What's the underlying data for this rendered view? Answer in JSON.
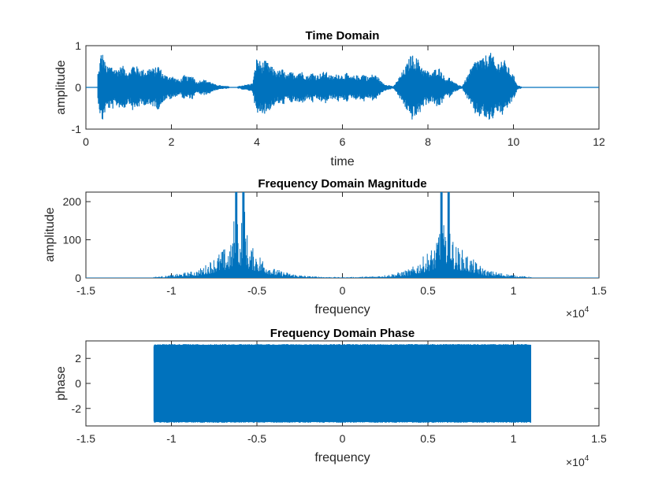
{
  "chart_data": [
    {
      "type": "line",
      "title": "Time Domain",
      "xlabel": "time",
      "ylabel": "amplitude",
      "xlim": [
        0,
        12
      ],
      "ylim": [
        -1,
        1
      ],
      "xticks": [
        0,
        2,
        4,
        6,
        8,
        10,
        12
      ],
      "xtick_labels": [
        "0",
        "2",
        "4",
        "6",
        "8",
        "10",
        "12"
      ],
      "yticks": [
        -1,
        0,
        1
      ],
      "ytick_labels": [
        "-1",
        "0",
        "1"
      ],
      "color": "#0072BD",
      "series": [
        {
          "x": [
            0,
            0.3,
            0.35,
            0.4,
            0.45,
            0.5,
            0.6,
            0.7,
            0.8,
            0.9,
            1.0,
            1.1,
            1.2,
            1.3,
            1.4,
            1.5,
            1.6,
            1.7,
            1.8,
            1.9,
            2.0,
            2.1,
            2.2,
            2.3,
            2.4,
            2.5,
            2.6,
            2.7,
            2.8,
            2.9,
            3.0,
            3.2,
            3.5,
            3.9,
            4.0,
            4.1,
            4.2,
            4.3,
            4.4,
            4.5,
            4.6,
            4.7,
            4.8,
            4.9,
            5.0,
            5.1,
            5.2,
            5.3,
            5.4,
            5.5,
            5.6,
            5.7,
            5.8,
            5.9,
            6.0,
            6.1,
            6.2,
            6.3,
            6.4,
            6.5,
            6.6,
            6.7,
            6.8,
            6.9,
            7.0,
            7.2,
            7.5,
            7.6,
            7.7,
            7.8,
            7.9,
            8.0,
            8.1,
            8.2,
            8.3,
            8.4,
            8.5,
            8.6,
            8.8,
            9.1,
            9.2,
            9.3,
            9.4,
            9.5,
            9.6,
            9.7,
            9.8,
            9.9,
            10.0,
            10.1,
            10.3,
            12.0
          ],
          "y_envelope": [
            0.02,
            0.4,
            0.85,
            0.82,
            0.6,
            0.5,
            0.55,
            0.45,
            0.5,
            0.52,
            0.35,
            0.58,
            0.5,
            0.45,
            0.42,
            0.5,
            0.45,
            0.55,
            0.35,
            0.28,
            0.3,
            0.22,
            0.18,
            0.3,
            0.25,
            0.3,
            0.12,
            0.2,
            0.18,
            0.15,
            0.08,
            0.04,
            0.02,
            0.1,
            0.75,
            0.6,
            0.65,
            0.55,
            0.45,
            0.4,
            0.45,
            0.3,
            0.38,
            0.35,
            0.42,
            0.35,
            0.28,
            0.38,
            0.3,
            0.35,
            0.4,
            0.3,
            0.28,
            0.35,
            0.3,
            0.35,
            0.25,
            0.3,
            0.28,
            0.35,
            0.25,
            0.32,
            0.3,
            0.15,
            0.08,
            0.03,
            0.55,
            0.8,
            0.75,
            0.65,
            0.45,
            0.4,
            0.35,
            0.5,
            0.45,
            0.22,
            0.25,
            0.12,
            0.03,
            0.65,
            0.72,
            0.7,
            0.85,
            0.82,
            0.55,
            0.7,
            0.65,
            0.45,
            0.3,
            0.05,
            0.0,
            0.0
          ]
        }
      ]
    },
    {
      "type": "line",
      "title": "Frequency Domain Magnitude",
      "xlabel": "frequency",
      "ylabel": "amplitude",
      "xlim": [
        -15000,
        15000
      ],
      "ylim": [
        0,
        225
      ],
      "xticks": [
        -15000,
        -10000,
        -5000,
        0,
        5000,
        10000,
        15000
      ],
      "xtick_labels": [
        "-1.5",
        "-1",
        "-0.5",
        "0",
        "0.5",
        "1",
        "1.5"
      ],
      "yticks": [
        0,
        100,
        200
      ],
      "ytick_labels": [
        "0",
        "100",
        "200"
      ],
      "x_exponent_base": "×10",
      "x_exponent": "4",
      "color": "#0072BD",
      "series": [
        {
          "x": [
            -11025,
            -10500,
            -10000,
            -9500,
            -9000,
            -8500,
            -8000,
            -7500,
            -7000,
            -6500,
            -6200,
            -6000,
            -5800,
            -5500,
            -5000,
            -4500,
            -4000,
            -3500,
            -3000,
            -2500,
            -2000,
            -1000,
            0,
            1000,
            2000,
            2500,
            3000,
            3500,
            4000,
            4500,
            5000,
            5500,
            5800,
            6000,
            6200,
            6500,
            7000,
            7500,
            8000,
            8500,
            9000,
            9500,
            10000,
            10500,
            11025
          ],
          "y_envelope": [
            3,
            5,
            8,
            12,
            16,
            20,
            35,
            55,
            75,
            90,
            225,
            100,
            225,
            90,
            70,
            45,
            25,
            18,
            12,
            8,
            5,
            3,
            2,
            3,
            5,
            8,
            12,
            18,
            25,
            45,
            70,
            90,
            225,
            100,
            225,
            90,
            75,
            55,
            35,
            20,
            16,
            12,
            8,
            5,
            3
          ]
        }
      ]
    },
    {
      "type": "line",
      "title": "Frequency Domain Phase",
      "xlabel": "frequency",
      "ylabel": "phase",
      "xlim": [
        -15000,
        15000
      ],
      "ylim": [
        -3.4,
        3.4
      ],
      "xticks": [
        -15000,
        -10000,
        -5000,
        0,
        5000,
        10000,
        15000
      ],
      "xtick_labels": [
        "-1.5",
        "-1",
        "-0.5",
        "0",
        "0.5",
        "1",
        "1.5"
      ],
      "yticks": [
        -2,
        0,
        2
      ],
      "ytick_labels": [
        "-2",
        "0",
        "2"
      ],
      "x_exponent_base": "×10",
      "x_exponent": "4",
      "color": "#0072BD",
      "series": [
        {
          "x": [
            -11025,
            11025
          ],
          "y_range": [
            -3.1416,
            3.1416
          ]
        }
      ]
    }
  ]
}
